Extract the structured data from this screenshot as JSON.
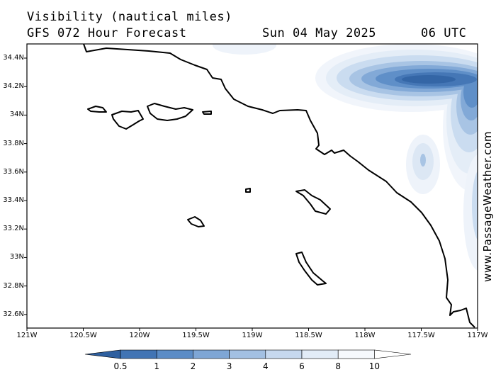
{
  "header": {
    "title": "Visibility (nautical miles)",
    "forecast": "GFS 072 Hour Forecast",
    "date": "Sun 04 May 2025",
    "time": "06 UTC"
  },
  "watermark": "www.PassageWeather.com",
  "map": {
    "lat_labels": [
      "34.4N",
      "34.2N",
      "34N",
      "33.8N",
      "33.6N",
      "33.4N",
      "33.2N",
      "33N",
      "32.8N",
      "32.6N"
    ],
    "lon_labels": [
      "121W",
      "120.5W",
      "120W",
      "119.5W",
      "119W",
      "118.5W",
      "118W",
      "117.5W",
      "117W"
    ],
    "lat_range": [
      32.5,
      34.5
    ],
    "lon_range": [
      -121,
      -117
    ]
  },
  "legend": {
    "labels": [
      "0.5",
      "1",
      "2",
      "3",
      "4",
      "6",
      "8",
      "10"
    ],
    "colors": [
      "#2e5f9f",
      "#4174b4",
      "#5b8cc6",
      "#7ea6d5",
      "#a3c0e2",
      "#c6d8ee",
      "#e2ecf7",
      "#f6f9fd"
    ]
  }
}
